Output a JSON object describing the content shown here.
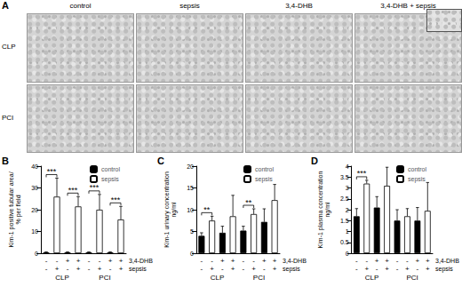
{
  "panel_A": {
    "letter": "A",
    "columns": [
      "control",
      "sepsis",
      "3,4-DHB",
      "3,4-DHB + sepsis"
    ],
    "rows": [
      "CLP",
      "PCI"
    ]
  },
  "chart_data": [
    {
      "type": "bar",
      "panel": "B",
      "y_label": [
        "Kim-1 positive tubular area/",
        "% per field"
      ],
      "ylim": [
        0,
        40
      ],
      "yticks": [
        0,
        10,
        20,
        30,
        40
      ],
      "grid": false,
      "legend": "upper right",
      "groups": [
        "CLP",
        "PCI"
      ],
      "rows": [
        {
          "label": "3,4-DHB",
          "signs": [
            "-",
            "-",
            "+",
            "+",
            "-",
            "-",
            "+",
            "+"
          ]
        },
        {
          "label": "sepsis",
          "signs": [
            "-",
            "+",
            "-",
            "+",
            "-",
            "+",
            "-",
            "+"
          ]
        }
      ],
      "series": [
        {
          "name": "control",
          "color": "#000000",
          "values": [
            0.4,
            null,
            0.4,
            null,
            0.4,
            null,
            0.4,
            null
          ],
          "errors": [
            0.2,
            null,
            0.2,
            null,
            0.2,
            null,
            0.2,
            null
          ]
        },
        {
          "name": "sepsis",
          "color": "#ffffff",
          "values": [
            null,
            26,
            null,
            21.5,
            null,
            20,
            null,
            15.5
          ],
          "errors": [
            null,
            8.5,
            null,
            4.5,
            null,
            7,
            null,
            6
          ]
        }
      ],
      "significance": [
        {
          "from": 0,
          "to": 1,
          "label": "***"
        },
        {
          "from": 2,
          "to": 3,
          "label": "***"
        },
        {
          "from": 4,
          "to": 5,
          "label": "***"
        },
        {
          "from": 6,
          "to": 7,
          "label": "***"
        }
      ]
    },
    {
      "type": "bar",
      "panel": "C",
      "y_label": [
        "Kim-1 urinary concentration",
        "ng/ml"
      ],
      "ylim": [
        0,
        20
      ],
      "yticks": [
        0,
        5,
        10,
        15,
        20
      ],
      "grid": false,
      "legend": "upper right",
      "groups": [
        "CLP",
        "PCI"
      ],
      "rows": [
        {
          "label": "3,4-DHB",
          "signs": [
            "-",
            "-",
            "+",
            "+",
            "-",
            "-",
            "+",
            "+"
          ]
        },
        {
          "label": "sepsis",
          "signs": [
            "-",
            "+",
            "-",
            "+",
            "-",
            "+",
            "-",
            "+"
          ]
        }
      ],
      "series": [
        {
          "name": "control",
          "color": "#000000",
          "values": [
            4.0,
            null,
            4.7,
            null,
            5.2,
            null,
            7.2,
            null
          ],
          "errors": [
            0.7,
            null,
            1.5,
            null,
            1,
            null,
            3,
            null
          ]
        },
        {
          "name": "sepsis",
          "color": "#ffffff",
          "values": [
            null,
            7.5,
            null,
            8.5,
            null,
            9,
            null,
            12.2
          ],
          "errors": [
            null,
            1,
            null,
            4.8,
            null,
            1.2,
            null,
            3.6
          ]
        }
      ],
      "significance": [
        {
          "from": 0,
          "to": 1,
          "label": "**"
        },
        {
          "from": 4,
          "to": 5,
          "label": "**"
        }
      ]
    },
    {
      "type": "bar",
      "panel": "D",
      "y_label": [
        "Kim-1 plasma concentration",
        "ng/ml"
      ],
      "ylim": [
        0,
        4
      ],
      "yticks": [
        0,
        0.5,
        1,
        1.5,
        2,
        2.5,
        3,
        3.5,
        4
      ],
      "grid": false,
      "legend": "upper right",
      "groups": [
        "CLP",
        "PCI"
      ],
      "rows": [
        {
          "label": "3,4-DHB",
          "signs": [
            "-",
            "-",
            "+",
            "+",
            "-",
            "-",
            "+",
            "+"
          ]
        },
        {
          "label": "sepsis",
          "signs": [
            "-",
            "+",
            "-",
            "+",
            "-",
            "+",
            "-",
            "+"
          ]
        }
      ],
      "series": [
        {
          "name": "control",
          "color": "#000000",
          "values": [
            1.7,
            null,
            2.1,
            null,
            1.5,
            null,
            1.5,
            null
          ],
          "errors": [
            0.35,
            null,
            0.5,
            null,
            0.5,
            null,
            0.6,
            null
          ]
        },
        {
          "name": "sepsis",
          "color": "#ffffff",
          "values": [
            null,
            3.2,
            null,
            3.1,
            null,
            1.7,
            null,
            1.95
          ],
          "errors": [
            null,
            0.15,
            null,
            0.85,
            null,
            0.35,
            null,
            1.3
          ]
        }
      ],
      "significance": [
        {
          "from": 0,
          "to": 1,
          "label": "***"
        }
      ]
    }
  ]
}
